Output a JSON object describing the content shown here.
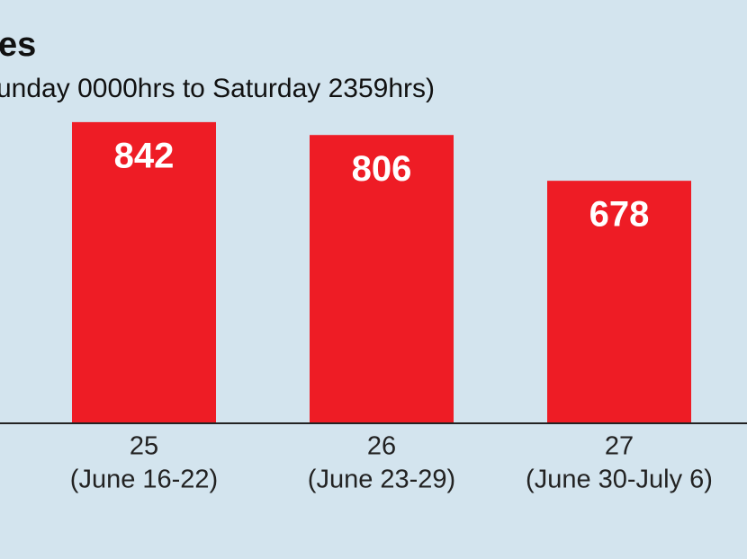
{
  "chart_data": {
    "type": "bar",
    "title": "es",
    "subtitle": "unday 0000hrs to Saturday 2359hrs)",
    "categories": [
      [
        "25",
        "(June 16-22)"
      ],
      [
        "26",
        "(June 23-29)"
      ],
      [
        "27",
        "(June 30-July 6)"
      ]
    ],
    "values": [
      842,
      806,
      678
    ],
    "color": "#ee1c25",
    "ylim": [
      0,
      1000
    ]
  }
}
